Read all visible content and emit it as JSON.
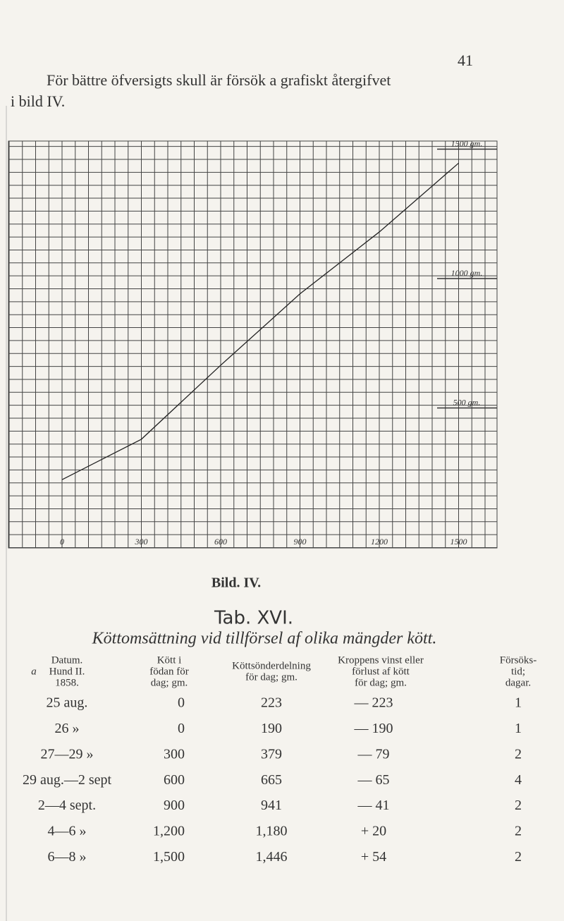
{
  "page_number": "41",
  "intro": [
    "För bättre öfversigts skull är försök a grafiskt återgifvet",
    "i bild IV."
  ],
  "figure": {
    "type": "line",
    "x": [
      0,
      300,
      600,
      900,
      1200,
      1500
    ],
    "y": [
      223,
      379,
      665,
      941,
      1180,
      1446
    ],
    "xticks": [
      0,
      300,
      600,
      900,
      1200,
      1500
    ],
    "yticks": [
      {
        "value": 500,
        "label": "500 gm."
      },
      {
        "value": 1000,
        "label": "1000 gm."
      },
      {
        "value": 1500,
        "label": "1500 gm."
      }
    ],
    "caption": "Bild. IV."
  },
  "table": {
    "label": "Tab. XVI.",
    "title": "Köttomsättning vid tillförsel af olika mängder kött.",
    "marker": "a",
    "headers": [
      [
        "Datum.",
        "Hund II.",
        "1858."
      ],
      [
        "Kött i",
        "födan för",
        "dag; gm."
      ],
      [
        "Köttsönderdelning",
        "för dag; gm."
      ],
      [
        "Kroppens vinst eller",
        "förlust af kött",
        "för dag; gm."
      ],
      [
        "Försöks-",
        "tid;",
        "dagar."
      ]
    ],
    "rows": [
      [
        "25 aug.",
        "0",
        "223",
        "— 223",
        "1"
      ],
      [
        "26 »",
        "0",
        "190",
        "— 190",
        "1"
      ],
      [
        "27—29 »",
        "300",
        "379",
        "— 79",
        "2"
      ],
      [
        "29 aug.—2 sept",
        "600",
        "665",
        "— 65",
        "4"
      ],
      [
        "2—4 sept.",
        "900",
        "941",
        "— 41",
        "2"
      ],
      [
        "4—6 »",
        "1,200",
        "1,180",
        "+ 20",
        "2"
      ],
      [
        "6—8 »",
        "1,500",
        "1,446",
        "+ 54",
        "2"
      ]
    ]
  }
}
